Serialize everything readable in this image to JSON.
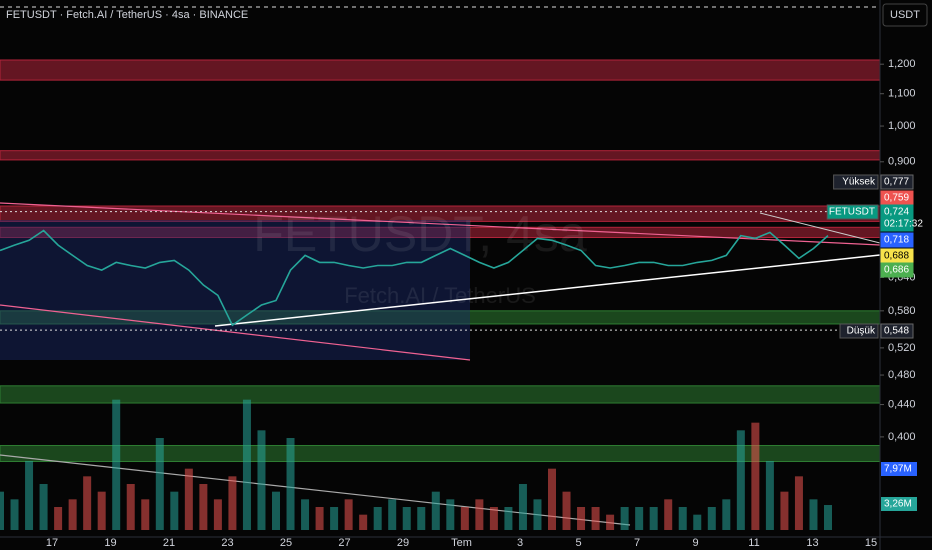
{
  "header": {
    "symbol": "FETUSDT · Fetch.AI / TetherUS · 4sa · BINANCE",
    "currency": "USDT"
  },
  "watermark": {
    "title": "FETUSDT, 4sa",
    "subtitle": "Fetch.AI / TetherUS"
  },
  "chart_data": {
    "type": "line",
    "color": "#26a69a",
    "log_scale": true,
    "ylim": [
      0.304,
      1.45
    ],
    "yticks": [
      {
        "value": 1.2,
        "label": "1,200"
      },
      {
        "value": 1.1,
        "label": "1,100"
      },
      {
        "value": 1.0,
        "label": "1,000"
      },
      {
        "value": 0.9,
        "label": "0,900"
      },
      {
        "value": 0.64,
        "label": "0,640"
      },
      {
        "value": 0.58,
        "label": "0,580"
      },
      {
        "value": 0.52,
        "label": "0,520"
      },
      {
        "value": 0.48,
        "label": "0,480"
      },
      {
        "value": 0.44,
        "label": "0,440"
      },
      {
        "value": 0.4,
        "label": "0,400"
      }
    ],
    "x_labels": [
      "17",
      "19",
      "21",
      "23",
      "25",
      "27",
      "29",
      "Tem",
      "3",
      "5",
      "7",
      "9",
      "11",
      "13",
      "15"
    ],
    "values": [
      0.693,
      0.704,
      0.714,
      0.735,
      0.704,
      0.683,
      0.663,
      0.654,
      0.669,
      0.663,
      0.658,
      0.669,
      0.673,
      0.654,
      0.626,
      0.607,
      0.556,
      0.573,
      0.59,
      0.598,
      0.654,
      0.683,
      0.669,
      0.669,
      0.663,
      0.658,
      0.663,
      0.663,
      0.669,
      0.669,
      0.683,
      0.697,
      0.683,
      0.669,
      0.658,
      0.669,
      0.693,
      0.718,
      0.714,
      0.704,
      0.693,
      0.663,
      0.658,
      0.663,
      0.669,
      0.669,
      0.663,
      0.663,
      0.669,
      0.673,
      0.683,
      0.724,
      0.718,
      0.731,
      0.704,
      0.677,
      0.697,
      0.724
    ],
    "volume": {
      "ylim": [
        0,
        30
      ],
      "up_color": "#26a69a",
      "down_color": "#ef5350",
      "values": [
        5,
        4,
        9,
        6,
        3,
        4,
        7,
        5,
        17,
        6,
        4,
        12,
        5,
        8,
        6,
        4,
        7,
        17,
        13,
        5,
        12,
        4,
        3,
        3,
        4,
        2,
        3,
        4,
        3,
        3,
        5,
        4,
        3,
        4,
        3,
        3,
        6,
        4,
        8,
        5,
        3,
        3,
        2,
        3,
        3,
        3,
        4,
        3,
        2,
        3,
        4,
        13,
        14,
        9,
        5,
        7,
        4,
        3.26
      ]
    },
    "volume_labels": [
      {
        "value": 7.97,
        "label": "7,97M",
        "color": "#2962ff"
      },
      {
        "value": 3.26,
        "label": "3,26M",
        "color": "#26a69a"
      }
    ],
    "zones": [
      {
        "low": 1.145,
        "high": 1.215,
        "color": "#b2243a"
      },
      {
        "low": 0.905,
        "high": 0.93,
        "color": "#b2243a"
      },
      {
        "low": 0.755,
        "high": 0.79,
        "color": "#b2243a"
      },
      {
        "low": 0.72,
        "high": 0.742,
        "color": "#b2243a"
      },
      {
        "low": 0.558,
        "high": 0.58,
        "color": "#2e7d32"
      },
      {
        "low": 0.442,
        "high": 0.465,
        "color": "#2e7d32"
      },
      {
        "low": 0.372,
        "high": 0.39,
        "color": "#2e7d32"
      }
    ],
    "price_labels": [
      {
        "name": "Yüksek",
        "value": 0.777,
        "label": "0,777",
        "color": "#1e222d"
      },
      {
        "value": 0.759,
        "label": "0,759",
        "color": "#ef5350"
      },
      {
        "name": "FETUSDT",
        "value": 0.724,
        "label": "0,724",
        "timer": "02:17:32",
        "color": "#089981"
      },
      {
        "value": 0.718,
        "label": "0,718",
        "color": "#2962ff"
      },
      {
        "value": 0.688,
        "label": "0,688",
        "color": "#f7e24b"
      },
      {
        "value": 0.686,
        "label": "0,686",
        "color": "#4caf50"
      },
      {
        "name": "Düşük",
        "value": 0.548,
        "label": "0,548",
        "color": "#1e222d"
      }
    ]
  }
}
